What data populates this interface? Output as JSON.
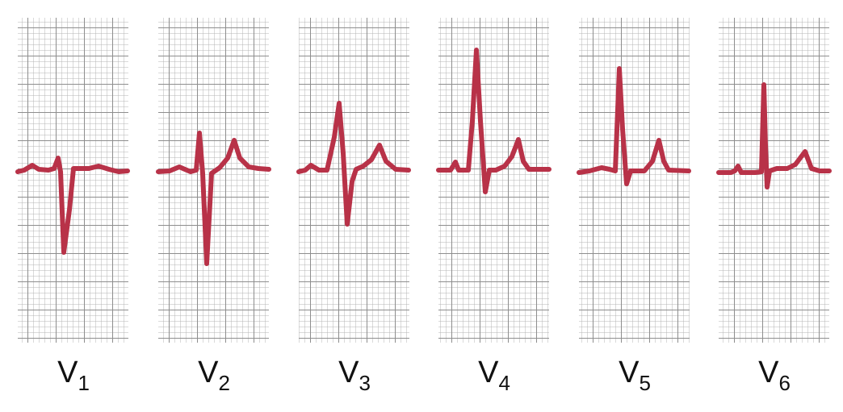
{
  "leads": [
    {
      "letter": "V",
      "sub": "1"
    },
    {
      "letter": "V",
      "sub": "2"
    },
    {
      "letter": "V",
      "sub": "3"
    },
    {
      "letter": "V",
      "sub": "4"
    },
    {
      "letter": "V",
      "sub": "5"
    },
    {
      "letter": "V",
      "sub": "6"
    }
  ]
}
